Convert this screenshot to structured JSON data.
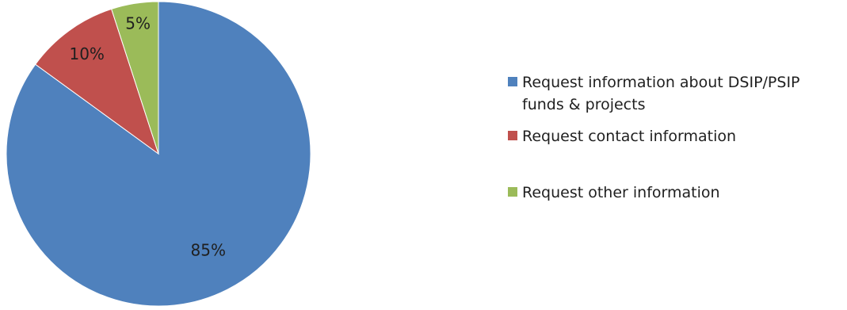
{
  "chart_data": {
    "type": "pie",
    "title": "",
    "start_angle_deg": 0,
    "direction": "clockwise",
    "legend_position": "right",
    "slices": [
      {
        "label": "Request information about DSIP/PSIP funds & projects",
        "value": 85,
        "display": "85%",
        "color": "#4F81BD"
      },
      {
        "label": "Request contact information",
        "value": 10,
        "display": "10%",
        "color": "#C0504D"
      },
      {
        "label": "Request other information",
        "value": 5,
        "display": "5%",
        "color": "#9BBB59"
      }
    ]
  }
}
